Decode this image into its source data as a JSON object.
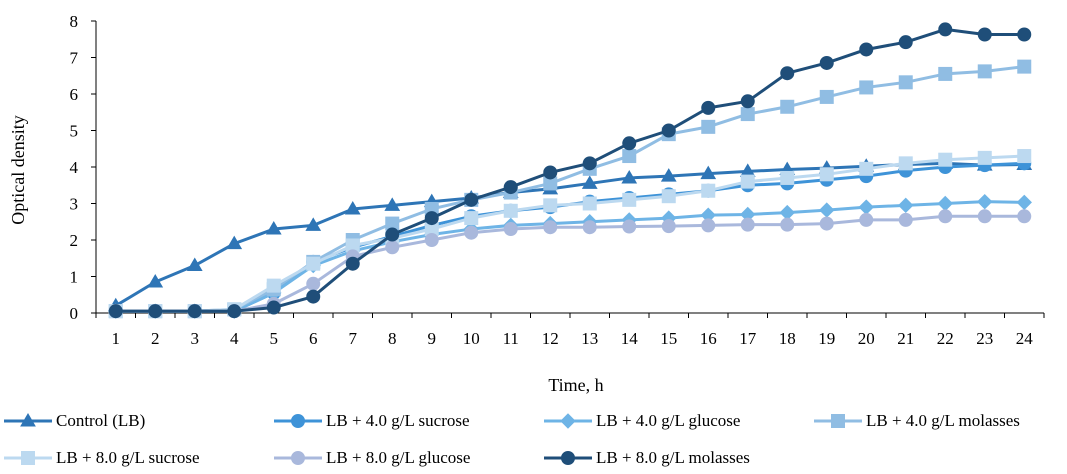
{
  "chart_data": {
    "type": "line",
    "title": "",
    "xlabel": "Time, h",
    "ylabel": "Optical density",
    "ylim": [
      0,
      8
    ],
    "yticks": [
      "0",
      "1",
      "2",
      "3",
      "4",
      "5",
      "6",
      "7",
      "8"
    ],
    "categories": [
      "1",
      "2",
      "3",
      "4",
      "5",
      "6",
      "7",
      "8",
      "9",
      "10",
      "11",
      "12",
      "13",
      "14",
      "15",
      "16",
      "17",
      "18",
      "19",
      "20",
      "21",
      "22",
      "23",
      "24"
    ],
    "grid": false,
    "legend_position": "bottom",
    "series": [
      {
        "name": "Control (LB)",
        "marker": "triangle",
        "color": "#2e75b6",
        "values": [
          0.2,
          0.85,
          1.3,
          1.9,
          2.3,
          2.4,
          2.85,
          2.95,
          3.05,
          3.15,
          3.3,
          3.4,
          3.55,
          3.7,
          3.75,
          3.82,
          3.88,
          3.93,
          3.97,
          4.02,
          4.07,
          4.1,
          4.05,
          4.07
        ]
      },
      {
        "name": "LB + 4.0 g/L sucrose",
        "marker": "circle",
        "color": "#3e93d8",
        "values": [
          0.05,
          0.05,
          0.05,
          0.05,
          0.55,
          1.4,
          1.8,
          2.1,
          2.4,
          2.65,
          2.8,
          2.9,
          3.05,
          3.15,
          3.25,
          3.35,
          3.5,
          3.55,
          3.65,
          3.75,
          3.9,
          4.0,
          4.05,
          4.1
        ]
      },
      {
        "name": "LB + 4.0 g/L glucose",
        "marker": "diamond",
        "color": "#6eb4e6",
        "values": [
          0.05,
          0.05,
          0.05,
          0.05,
          0.55,
          1.3,
          1.7,
          1.95,
          2.15,
          2.3,
          2.4,
          2.45,
          2.5,
          2.55,
          2.6,
          2.68,
          2.7,
          2.75,
          2.82,
          2.9,
          2.95,
          3.0,
          3.05,
          3.03
        ]
      },
      {
        "name": "LB + 4.0 g/L molasses",
        "marker": "square",
        "color": "#90bde3",
        "values": [
          0.05,
          0.05,
          0.05,
          0.1,
          0.65,
          1.4,
          2.0,
          2.45,
          2.85,
          3.1,
          3.3,
          3.55,
          3.95,
          4.3,
          4.9,
          5.1,
          5.45,
          5.65,
          5.92,
          6.18,
          6.32,
          6.55,
          6.62,
          6.75
        ]
      },
      {
        "name": "LB + 8.0 g/L sucrose",
        "marker": "square",
        "color": "#bcd9f0",
        "values": [
          0.05,
          0.05,
          0.05,
          0.1,
          0.75,
          1.35,
          1.85,
          2.05,
          2.3,
          2.6,
          2.8,
          2.95,
          3.0,
          3.1,
          3.2,
          3.35,
          3.6,
          3.7,
          3.8,
          3.95,
          4.1,
          4.2,
          4.25,
          4.3
        ]
      },
      {
        "name": "LB + 8.0 g/L glucose",
        "marker": "circle",
        "color": "#a9b8dc",
        "values": [
          0.05,
          0.05,
          0.05,
          0.05,
          0.25,
          0.8,
          1.55,
          1.8,
          2.0,
          2.2,
          2.3,
          2.35,
          2.35,
          2.37,
          2.38,
          2.4,
          2.42,
          2.42,
          2.45,
          2.55,
          2.55,
          2.65,
          2.65,
          2.65
        ]
      },
      {
        "name": "LB + 8.0 g/L molasses",
        "marker": "circle",
        "color": "#1f4e79",
        "values": [
          0.05,
          0.05,
          0.05,
          0.05,
          0.15,
          0.45,
          1.35,
          2.15,
          2.6,
          3.1,
          3.45,
          3.85,
          4.1,
          4.65,
          5.0,
          5.62,
          5.8,
          6.57,
          6.85,
          7.22,
          7.42,
          7.77,
          7.63,
          7.63
        ]
      }
    ]
  }
}
